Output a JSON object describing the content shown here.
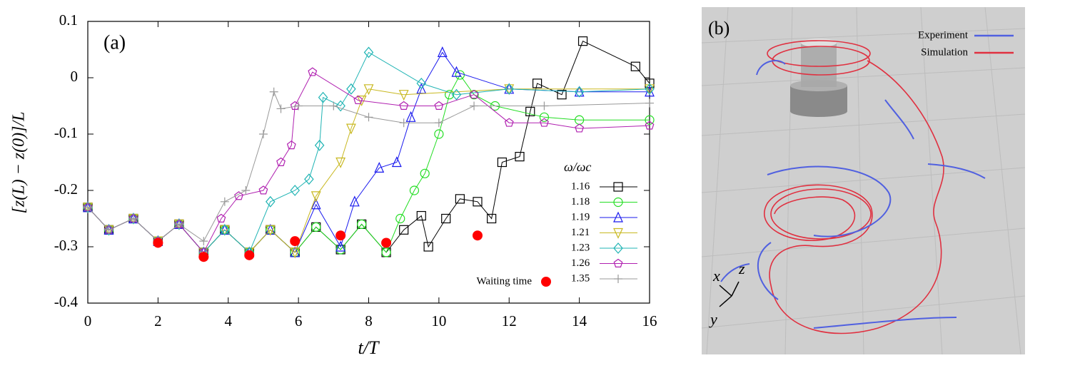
{
  "chart_data": {
    "type": "line",
    "panel_label": "(a)",
    "xlabel": "t/T",
    "ylabel": "[z(L) − z(0)]/L",
    "legend_title": "ω/ωc",
    "xlim": [
      0,
      16
    ],
    "ylim": [
      -0.4,
      0.1
    ],
    "xticks": [
      0,
      2,
      4,
      6,
      8,
      10,
      12,
      14,
      16
    ],
    "yticks": [
      -0.4,
      -0.3,
      -0.2,
      -0.1,
      0,
      0.1
    ],
    "series": [
      {
        "name": "1.16",
        "color": "#000000",
        "marker": "square",
        "x": [
          0,
          0.6,
          1.3,
          2.0,
          2.6,
          3.3,
          3.9,
          4.6,
          5.2,
          5.9,
          6.5,
          7.2,
          7.8,
          8.5,
          9.0,
          9.5,
          9.7,
          10.2,
          10.6,
          11.1,
          11.5,
          11.8,
          12.3,
          12.6,
          12.8,
          13.5,
          14.1,
          15.6,
          16
        ],
        "values": [
          -0.23,
          -0.27,
          -0.25,
          -0.29,
          -0.26,
          -0.31,
          -0.27,
          -0.31,
          -0.27,
          -0.31,
          -0.265,
          -0.305,
          -0.26,
          -0.31,
          -0.27,
          -0.245,
          -0.3,
          -0.25,
          -0.215,
          -0.22,
          -0.25,
          -0.15,
          -0.14,
          -0.06,
          -0.01,
          -0.03,
          0.065,
          0.02,
          -0.01
        ]
      },
      {
        "name": "1.18",
        "color": "#22dd22",
        "marker": "circle",
        "x": [
          0,
          0.6,
          1.3,
          2.0,
          2.6,
          3.3,
          3.9,
          4.6,
          5.2,
          5.9,
          6.5,
          7.2,
          7.8,
          8.5,
          8.9,
          9.3,
          9.6,
          10.0,
          10.3,
          10.6,
          11.0,
          11.6,
          13.0,
          14.0,
          16.0
        ],
        "values": [
          -0.23,
          -0.27,
          -0.25,
          -0.29,
          -0.26,
          -0.31,
          -0.27,
          -0.31,
          -0.27,
          -0.31,
          -0.265,
          -0.305,
          -0.26,
          -0.31,
          -0.25,
          -0.2,
          -0.17,
          -0.1,
          -0.03,
          0.005,
          -0.03,
          -0.05,
          -0.07,
          -0.075,
          -0.075
        ]
      },
      {
        "name": "1.19",
        "color": "#1a1aee",
        "marker": "triangle",
        "x": [
          0,
          0.6,
          1.3,
          2.0,
          2.6,
          3.3,
          3.9,
          4.6,
          5.2,
          5.9,
          6.5,
          7.2,
          7.6,
          8.3,
          8.8,
          9.2,
          9.5,
          10.1,
          10.5,
          12,
          14,
          16
        ],
        "values": [
          -0.23,
          -0.27,
          -0.25,
          -0.29,
          -0.26,
          -0.31,
          -0.27,
          -0.31,
          -0.27,
          -0.31,
          -0.225,
          -0.3,
          -0.22,
          -0.16,
          -0.15,
          -0.07,
          -0.02,
          0.045,
          0.01,
          -0.02,
          -0.025,
          -0.025
        ]
      },
      {
        "name": "1.21",
        "color": "#c8b820",
        "marker": "triangle-down",
        "x": [
          0,
          0.6,
          1.3,
          2.0,
          2.6,
          3.3,
          3.9,
          4.6,
          5.2,
          5.9,
          6.5,
          7.2,
          7.5,
          7.8,
          8.0,
          9.0,
          12,
          16
        ],
        "values": [
          -0.23,
          -0.27,
          -0.25,
          -0.29,
          -0.26,
          -0.31,
          -0.27,
          -0.31,
          -0.27,
          -0.31,
          -0.21,
          -0.15,
          -0.09,
          -0.04,
          -0.02,
          -0.03,
          -0.02,
          -0.02
        ]
      },
      {
        "name": "1.23",
        "color": "#20b4b4",
        "marker": "diamond",
        "x": [
          0,
          0.6,
          1.3,
          2.0,
          2.6,
          3.3,
          3.9,
          4.6,
          5.2,
          5.9,
          6.3,
          6.6,
          6.7,
          7.2,
          7.5,
          8.0,
          9.5,
          10.5,
          12,
          14,
          16
        ],
        "values": [
          -0.23,
          -0.27,
          -0.25,
          -0.29,
          -0.26,
          -0.31,
          -0.27,
          -0.31,
          -0.22,
          -0.2,
          -0.18,
          -0.12,
          -0.035,
          -0.05,
          -0.02,
          0.045,
          -0.01,
          -0.03,
          -0.02,
          -0.025,
          -0.02
        ]
      },
      {
        "name": "1.26",
        "color": "#b020b0",
        "marker": "pentagon",
        "x": [
          0,
          0.6,
          1.3,
          2.0,
          2.6,
          3.3,
          3.8,
          4.3,
          5.0,
          5.5,
          5.8,
          5.9,
          6.4,
          7.7,
          9,
          10,
          11,
          12,
          13,
          14,
          16
        ],
        "values": [
          -0.23,
          -0.27,
          -0.25,
          -0.29,
          -0.26,
          -0.31,
          -0.25,
          -0.21,
          -0.2,
          -0.15,
          -0.12,
          -0.05,
          0.01,
          -0.04,
          -0.05,
          -0.05,
          -0.03,
          -0.08,
          -0.08,
          -0.09,
          -0.085
        ]
      },
      {
        "name": "1.35",
        "color": "#999999",
        "marker": "plus",
        "x": [
          0,
          0.6,
          1.3,
          2.0,
          2.6,
          3.3,
          3.9,
          4.5,
          5.0,
          5.3,
          5.5,
          6.0,
          7.0,
          8.0,
          9.0,
          10.0,
          11.0,
          13.0,
          16.0
        ],
        "values": [
          -0.23,
          -0.27,
          -0.25,
          -0.29,
          -0.26,
          -0.29,
          -0.22,
          -0.2,
          -0.1,
          -0.025,
          -0.055,
          -0.05,
          -0.05,
          -0.07,
          -0.08,
          -0.08,
          -0.05,
          -0.05,
          -0.045
        ]
      },
      {
        "name": "Waiting time",
        "color": "#ff0000",
        "marker": "dot",
        "line": false,
        "x": [
          2.0,
          3.3,
          4.6,
          5.9,
          7.2,
          8.5,
          11.1
        ],
        "values": [
          -0.293,
          -0.318,
          -0.315,
          -0.29,
          -0.28,
          -0.293,
          -0.28
        ]
      }
    ]
  },
  "panel_b": {
    "label": "(b)",
    "legend": [
      {
        "name": "Experiment",
        "color": "#5060e0"
      },
      {
        "name": "Simulation",
        "color": "#e03040"
      }
    ],
    "axes": {
      "x": "x",
      "y": "y",
      "z": "z"
    }
  }
}
